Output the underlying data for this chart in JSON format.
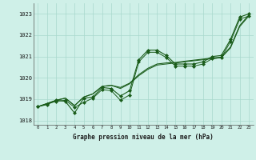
{
  "title": "Graphe pression niveau de la mer (hPa)",
  "bg_color": "#cff0e8",
  "grid_color": "#a8d8cc",
  "line_color": "#1a5c1a",
  "xlim": [
    -0.5,
    23.5
  ],
  "ylim": [
    1017.8,
    1023.5
  ],
  "yticks": [
    1018,
    1019,
    1020,
    1021,
    1022,
    1023
  ],
  "xticks": [
    0,
    1,
    2,
    3,
    4,
    5,
    6,
    7,
    8,
    9,
    10,
    11,
    12,
    13,
    14,
    15,
    16,
    17,
    18,
    19,
    20,
    21,
    22,
    23
  ],
  "series_jagged": [
    1018.65,
    1018.75,
    1018.95,
    1018.9,
    1018.35,
    1019.05,
    1019.1,
    1019.55,
    1019.5,
    1019.15,
    1019.4,
    1020.85,
    1021.3,
    1021.3,
    1021.05,
    1020.65,
    1020.65,
    1020.65,
    1020.75,
    1021.0,
    1021.05,
    1021.8,
    1022.85,
    1023.0
  ],
  "series_smooth1": [
    1018.65,
    1018.8,
    1018.95,
    1019.05,
    1018.7,
    1019.1,
    1019.25,
    1019.6,
    1019.65,
    1019.55,
    1019.75,
    1020.15,
    1020.45,
    1020.65,
    1020.7,
    1020.72,
    1020.78,
    1020.83,
    1020.88,
    1020.93,
    1020.97,
    1021.45,
    1022.45,
    1022.95
  ],
  "series_smooth2": [
    1018.65,
    1018.8,
    1018.95,
    1019.05,
    1018.7,
    1019.1,
    1019.25,
    1019.6,
    1019.65,
    1019.5,
    1019.72,
    1020.1,
    1020.4,
    1020.6,
    1020.65,
    1020.7,
    1020.75,
    1020.8,
    1020.85,
    1020.9,
    1020.95,
    1021.4,
    1022.4,
    1022.9
  ],
  "series_upper": [
    1018.65,
    1018.78,
    1018.9,
    1018.95,
    1018.62,
    1018.85,
    1019.05,
    1019.45,
    1019.4,
    1018.95,
    1019.2,
    1020.75,
    1021.2,
    1021.2,
    1020.95,
    1020.55,
    1020.55,
    1020.55,
    1020.65,
    1020.9,
    1020.95,
    1021.7,
    1022.75,
    1022.9
  ]
}
